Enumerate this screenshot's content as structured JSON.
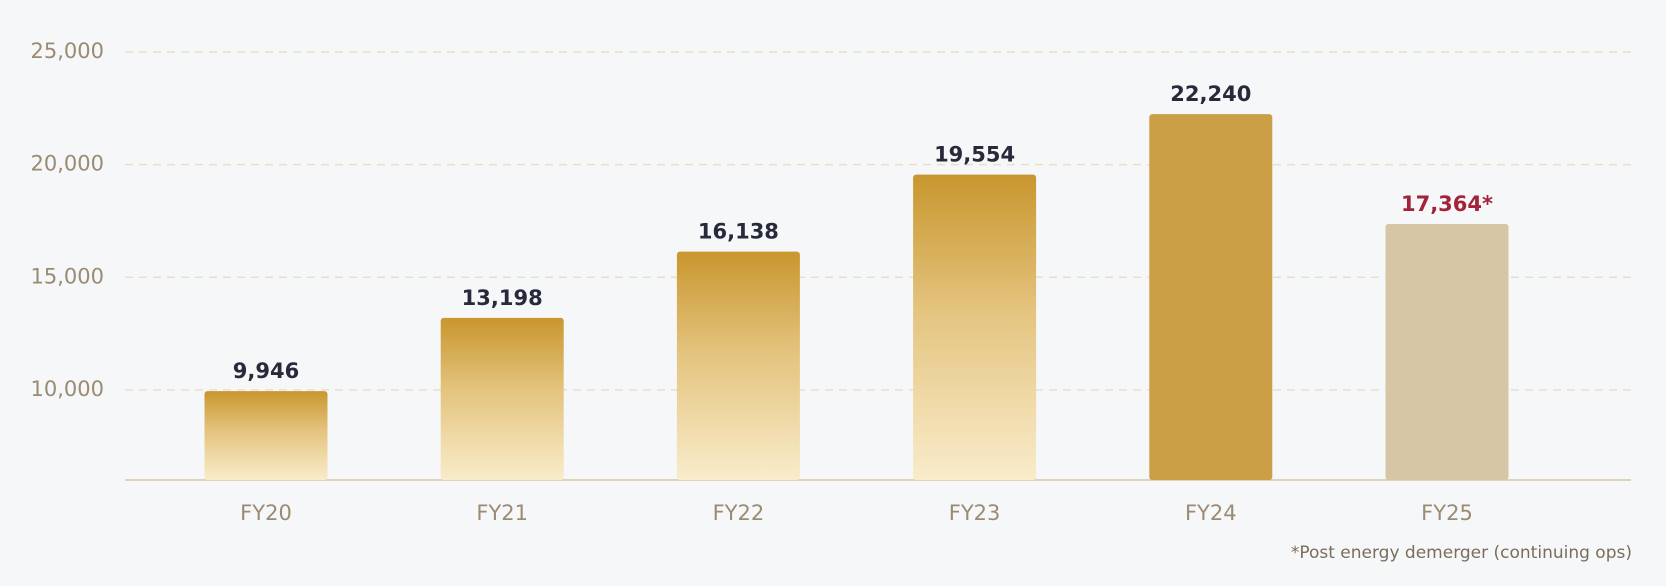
{
  "chart_data": {
    "type": "bar",
    "categories": [
      "FY20",
      "FY21",
      "FY22",
      "FY23",
      "FY24",
      "FY25"
    ],
    "values": [
      9946,
      13198,
      16138,
      19554,
      22240,
      17364
    ],
    "value_labels": [
      "9,946",
      "13,198",
      "16,138",
      "19,554",
      "22,240",
      "17,364*"
    ],
    "colors": [
      "#c9962e",
      "#c9962e",
      "#c9962e",
      "#c9962e",
      "#cb9f45",
      "#d6c6a6"
    ],
    "gradient": [
      true,
      true,
      true,
      true,
      false,
      false
    ],
    "label_colors": [
      "#262a3a",
      "#262a3a",
      "#262a3a",
      "#262a3a",
      "#262a3a",
      "#a3233a"
    ],
    "ylim": [
      6000,
      25000
    ],
    "yticks": [
      {
        "value": 10000,
        "label": "10,000"
      },
      {
        "value": 15000,
        "label": "15,000"
      },
      {
        "value": 20000,
        "label": "20,000"
      },
      {
        "value": 25000,
        "label": "25,000"
      }
    ],
    "grid": true,
    "note": "*Post energy demerger (continuing ops)"
  }
}
